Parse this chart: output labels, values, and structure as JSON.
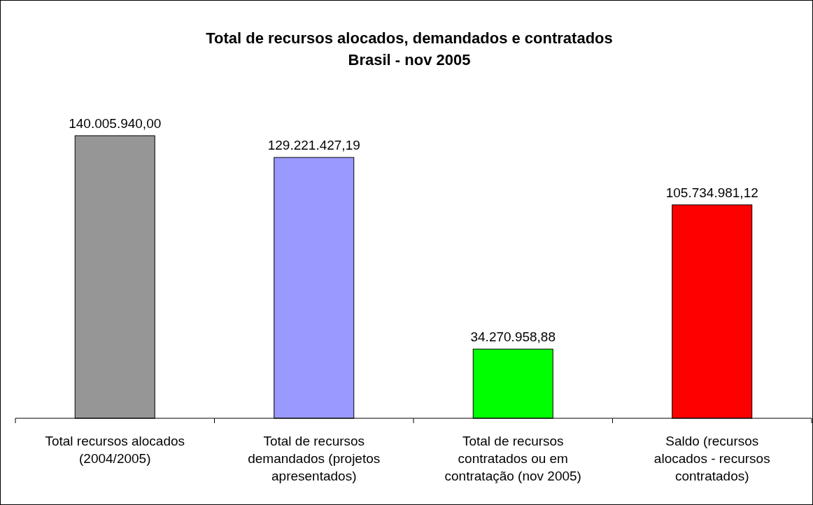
{
  "chart_data": {
    "type": "bar",
    "title": "Total de recursos alocados, demandados e contratados\nBrasil - nov 2005",
    "categories": [
      "Total recursos alocados (2004/2005)",
      "Total de recursos demandados (projetos apresentados)",
      "Total de recursos contratados ou em contratação (nov 2005)",
      "Saldo (recursos alocados - recursos contratados)"
    ],
    "values": [
      140005940.0,
      129221427.19,
      34270958.88,
      105734981.12
    ],
    "value_labels": [
      "140.005.940,00",
      "129.221.427,19",
      "34.270.958,88",
      "105.734.981,12"
    ],
    "colors": [
      "#969696",
      "#9999ff",
      "#00ff00",
      "#ff0000"
    ]
  }
}
